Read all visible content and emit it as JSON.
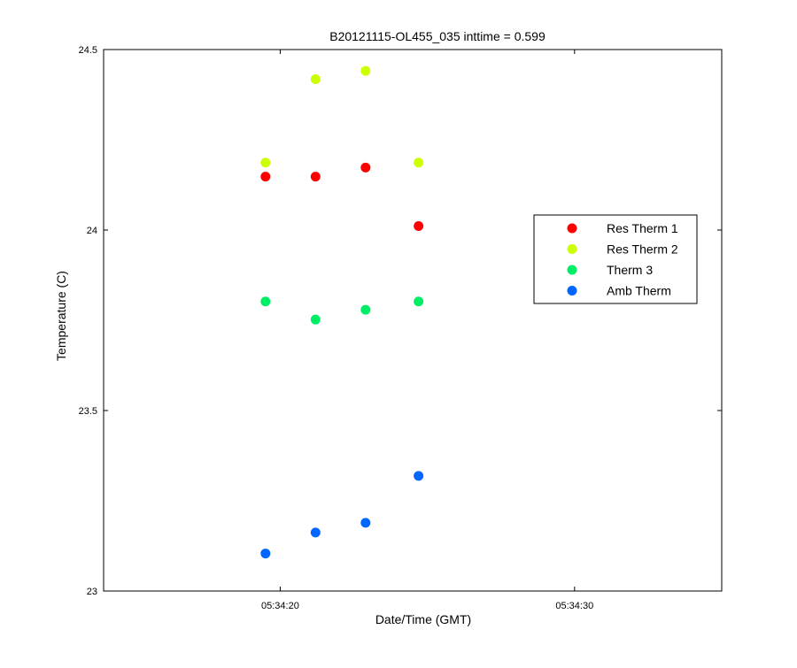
{
  "chart_data": {
    "type": "scatter",
    "title": "B20121115-OL455_035 inttime = 0.599",
    "xlabel": "Date/Time (GMT)",
    "ylabel": "Temperature (C)",
    "x_axis_kind": "time",
    "xlim": [
      "05:34:14",
      "05:34:35"
    ],
    "ylim": [
      23,
      24.5
    ],
    "yticks": [
      23,
      23.5,
      24,
      24.5
    ],
    "ytick_labels": [
      "23",
      "23.5",
      "24",
      "24.5"
    ],
    "xticks": [
      "05:34:20",
      "05:34:30"
    ],
    "xtick_labels": [
      "05:34:20",
      "05:34:30"
    ],
    "grid": false,
    "legend_position": "right",
    "x": [
      "05:34:19.5",
      "05:34:21.2",
      "05:34:22.9",
      "05:34:24.7"
    ],
    "series": [
      {
        "name": "Res Therm 1",
        "color": "#ff0000",
        "values": [
          24.148,
          24.148,
          24.173,
          24.011
        ]
      },
      {
        "name": "Res Therm 2",
        "color": "#ccff00",
        "values": [
          24.187,
          24.418,
          24.441,
          24.187
        ]
      },
      {
        "name": "Therm 3",
        "color": "#00ee66",
        "values": [
          23.802,
          23.752,
          23.779,
          23.802
        ]
      },
      {
        "name": "Amb Therm",
        "color": "#0066ff",
        "values": [
          23.104,
          23.162,
          23.189,
          23.319
        ]
      }
    ]
  }
}
